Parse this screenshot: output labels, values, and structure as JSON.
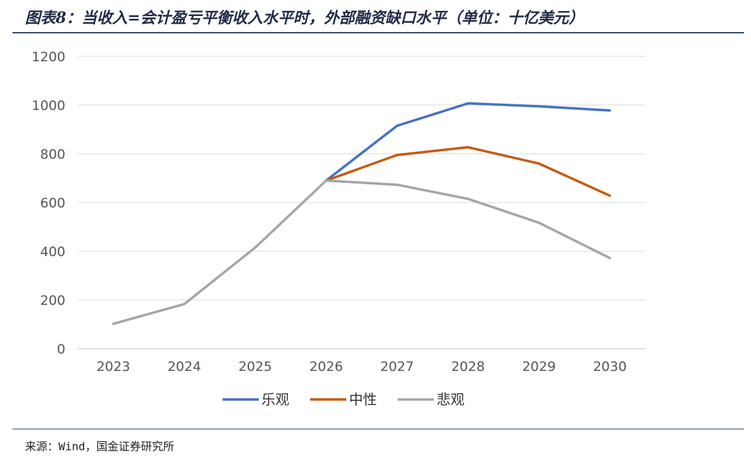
{
  "title": "图表8：当收入=会计盈亏平衡收入水平时，外部融资缺口水平（单位：十亿美元）",
  "source": "来源：Wind，国金证券研究所",
  "chart_data": {
    "type": "line",
    "categories": [
      "2023",
      "2024",
      "2025",
      "2026",
      "2027",
      "2028",
      "2029",
      "2030"
    ],
    "ylim": [
      0,
      1200
    ],
    "yticks": [
      0,
      200,
      400,
      600,
      800,
      1000,
      1200
    ],
    "grid": true,
    "legend": "bottom",
    "series": [
      {
        "name": "乐观",
        "color": "#4472C4",
        "values": [
          null,
          null,
          null,
          690,
          915,
          1007,
          995,
          978
        ]
      },
      {
        "name": "中性",
        "color": "#C55A11",
        "values": [
          null,
          null,
          null,
          690,
          795,
          827,
          760,
          628
        ]
      },
      {
        "name": "悲观",
        "color": "#A5A5A5",
        "values": [
          102,
          183,
          415,
          690,
          673,
          615,
          517,
          372
        ]
      }
    ]
  }
}
